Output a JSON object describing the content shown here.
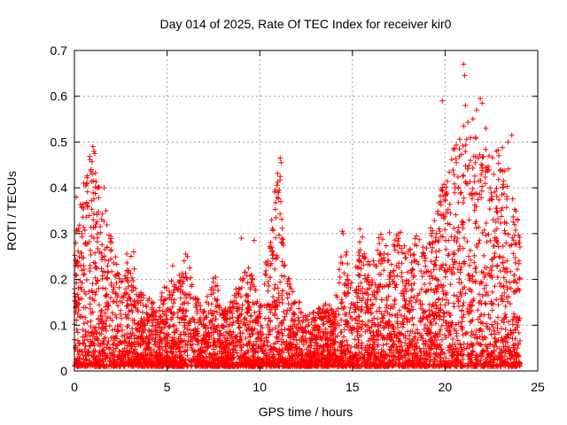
{
  "chart_data": {
    "type": "scatter",
    "title": "Day 014 of 2025, Rate Of TEC Index for receiver kir0",
    "xlabel": "GPS time / hours",
    "ylabel": "ROTI / TECUs",
    "xlim": [
      0,
      25
    ],
    "ylim": [
      0,
      0.7
    ],
    "xticks": [
      0,
      5,
      10,
      15,
      20,
      25
    ],
    "xtick_labels": [
      "0",
      "5",
      "10",
      "15",
      "20",
      "25"
    ],
    "yticks": [
      0,
      0.1,
      0.2,
      0.3,
      0.4,
      0.5,
      0.6,
      0.7
    ],
    "ytick_labels": [
      "0",
      "0.1",
      "0.2",
      "0.3",
      "0.4",
      "0.5",
      "0.6",
      "0.7"
    ],
    "grid": true,
    "marker": "plus",
    "color": "#ff0000",
    "envelope": {
      "x": [
        0,
        0.5,
        1,
        1.5,
        2,
        2.5,
        3,
        3.5,
        4,
        4.5,
        5,
        5.5,
        6,
        6.5,
        7,
        7.5,
        8,
        8.5,
        9,
        9.5,
        10,
        10.5,
        11,
        11.5,
        12,
        12.5,
        13,
        13.5,
        14,
        14.5,
        15,
        15.5,
        16,
        16.5,
        17,
        17.5,
        18,
        18.5,
        19,
        19.5,
        20,
        20.5,
        21,
        21.5,
        22,
        22.5,
        23,
        23.5,
        24
      ],
      "y": [
        0.28,
        0.42,
        0.48,
        0.35,
        0.28,
        0.22,
        0.26,
        0.17,
        0.15,
        0.13,
        0.2,
        0.18,
        0.25,
        0.17,
        0.12,
        0.22,
        0.12,
        0.15,
        0.2,
        0.22,
        0.13,
        0.28,
        0.46,
        0.2,
        0.15,
        0.12,
        0.12,
        0.15,
        0.13,
        0.3,
        0.18,
        0.3,
        0.22,
        0.3,
        0.25,
        0.3,
        0.25,
        0.3,
        0.27,
        0.35,
        0.42,
        0.48,
        0.52,
        0.55,
        0.5,
        0.45,
        0.5,
        0.44,
        0.3
      ]
    },
    "highlights": [
      {
        "x": 1.0,
        "y": 0.49
      },
      {
        "x": 1.05,
        "y": 0.48
      },
      {
        "x": 1.1,
        "y": 0.475
      },
      {
        "x": 11.1,
        "y": 0.465
      },
      {
        "x": 11.15,
        "y": 0.455
      },
      {
        "x": 11.1,
        "y": 0.425
      },
      {
        "x": 11.05,
        "y": 0.395
      },
      {
        "x": 19.85,
        "y": 0.59
      },
      {
        "x": 21.0,
        "y": 0.67
      },
      {
        "x": 21.05,
        "y": 0.645
      },
      {
        "x": 21.1,
        "y": 0.58
      },
      {
        "x": 21.0,
        "y": 0.535
      },
      {
        "x": 21.9,
        "y": 0.595
      },
      {
        "x": 22.0,
        "y": 0.585
      },
      {
        "x": 21.7,
        "y": 0.57
      },
      {
        "x": 22.2,
        "y": 0.53
      },
      {
        "x": 23.6,
        "y": 0.515
      },
      {
        "x": 23.4,
        "y": 0.5
      },
      {
        "x": 22.9,
        "y": 0.47
      },
      {
        "x": 14.45,
        "y": 0.305
      },
      {
        "x": 14.5,
        "y": 0.3
      },
      {
        "x": 15.4,
        "y": 0.31
      },
      {
        "x": 17.0,
        "y": 0.302
      },
      {
        "x": 17.6,
        "y": 0.303
      },
      {
        "x": 9.0,
        "y": 0.29
      },
      {
        "x": 9.7,
        "y": 0.285
      },
      {
        "x": 3.2,
        "y": 0.26
      },
      {
        "x": 5.3,
        "y": 0.23
      },
      {
        "x": 6.1,
        "y": 0.25
      },
      {
        "x": 0.1,
        "y": 0.38
      },
      {
        "x": 0.5,
        "y": 0.41
      },
      {
        "x": 0.9,
        "y": 0.44
      },
      {
        "x": 1.7,
        "y": 0.35
      },
      {
        "x": 1.6,
        "y": 0.4
      }
    ]
  }
}
